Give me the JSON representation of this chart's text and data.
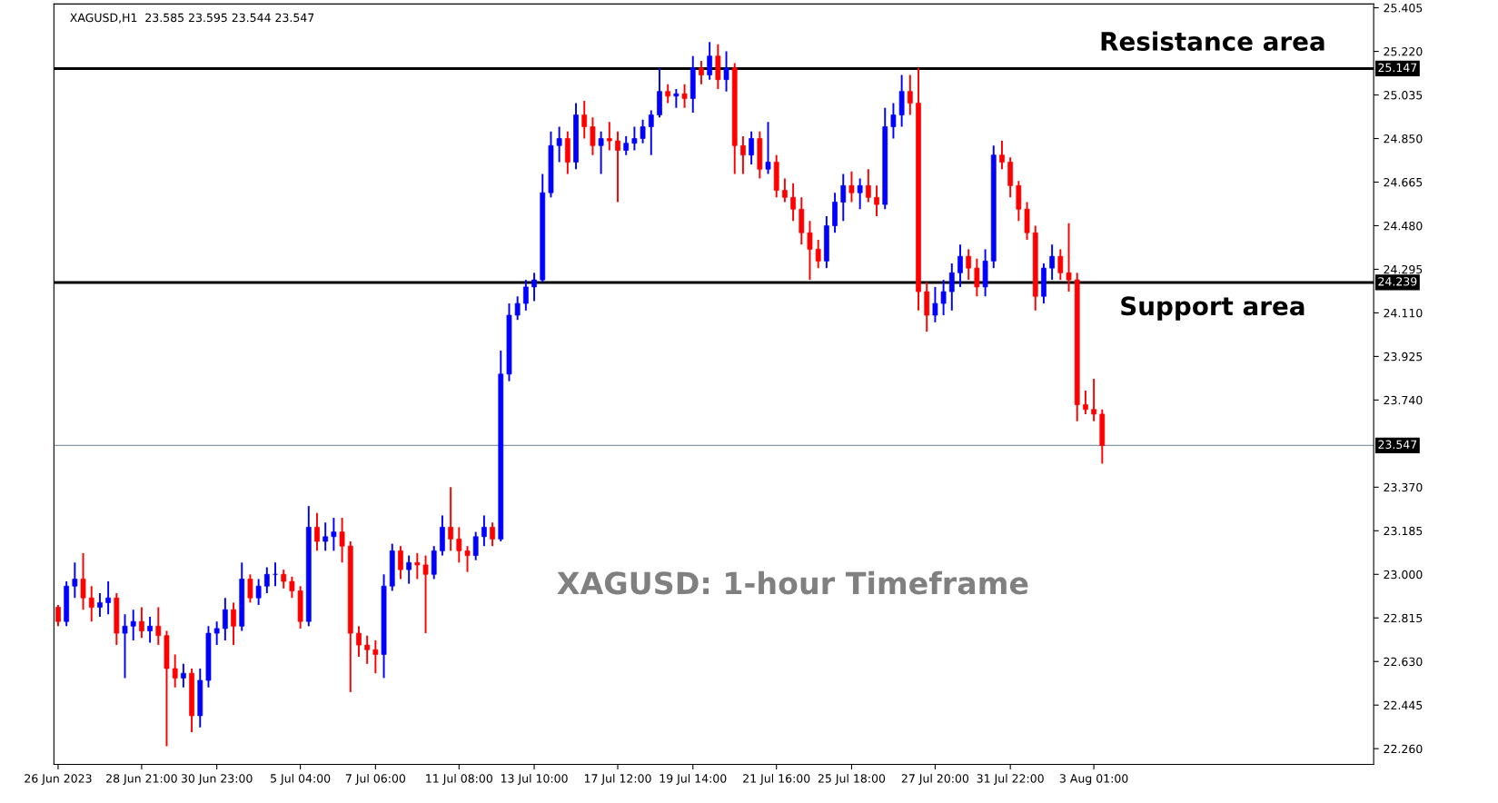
{
  "chart_data": {
    "type": "candlestick",
    "categories": [
      "26 Jun 2023",
      null,
      null,
      null,
      null,
      null,
      null,
      null,
      null,
      null,
      "28 Jun 21:00",
      null,
      null,
      null,
      null,
      null,
      null,
      null,
      null,
      "30 Jun 23:00",
      null,
      null,
      null,
      null,
      null,
      null,
      null,
      null,
      null,
      "5 Jul 04:00",
      null,
      null,
      null,
      null,
      null,
      null,
      null,
      null,
      "7 Jul 06:00",
      null,
      null,
      null,
      null,
      null,
      null,
      null,
      null,
      null,
      "11 Jul 08:00",
      null,
      null,
      null,
      null,
      null,
      null,
      null,
      null,
      "13 Jul 10:00",
      null,
      null,
      null,
      null,
      null,
      null,
      null,
      null,
      null,
      "17 Jul 12:00",
      null,
      null,
      null,
      null,
      null,
      null,
      null,
      null,
      "19 Jul 14:00",
      null,
      null,
      null,
      null,
      null,
      null,
      null,
      null,
      null,
      "21 Jul 16:00",
      null,
      null,
      null,
      null,
      null,
      null,
      null,
      null,
      "25 Jul 18:00",
      null,
      null,
      null,
      null,
      null,
      null,
      null,
      null,
      null,
      "27 Jul 20:00",
      null,
      null,
      null,
      null,
      null,
      null,
      null,
      null,
      "31 Jul 22:00",
      null,
      null,
      null,
      null,
      null,
      null,
      null,
      null,
      null,
      "3 Aug 01:00",
      null,
      null,
      null,
      null,
      null,
      null,
      null,
      null,
      null,
      null,
      null,
      null,
      null,
      null,
      null,
      null,
      null,
      null,
      null,
      null,
      null,
      null,
      null,
      null,
      null,
      null,
      null,
      null,
      null,
      null,
      null,
      null,
      null
    ],
    "ohlc": [
      [
        22.86,
        22.87,
        22.78,
        22.8
      ],
      [
        22.8,
        22.97,
        22.78,
        22.95
      ],
      [
        22.95,
        23.05,
        22.9,
        22.98
      ],
      [
        22.98,
        23.09,
        22.85,
        22.9
      ],
      [
        22.9,
        22.95,
        22.8,
        22.86
      ],
      [
        22.86,
        22.92,
        22.82,
        22.88
      ],
      [
        22.88,
        22.97,
        22.83,
        22.9
      ],
      [
        22.9,
        22.92,
        22.7,
        22.75
      ],
      [
        22.75,
        22.83,
        22.56,
        22.78
      ],
      [
        22.78,
        22.85,
        22.72,
        22.8
      ],
      [
        22.8,
        22.86,
        22.73,
        22.76
      ],
      [
        22.76,
        22.82,
        22.71,
        22.78
      ],
      [
        22.78,
        22.86,
        22.7,
        22.74
      ],
      [
        22.74,
        22.76,
        22.27,
        22.6
      ],
      [
        22.6,
        22.66,
        22.52,
        22.56
      ],
      [
        22.56,
        22.62,
        22.52,
        22.58
      ],
      [
        22.58,
        22.6,
        22.33,
        22.4
      ],
      [
        22.4,
        22.6,
        22.35,
        22.55
      ],
      [
        22.55,
        22.78,
        22.52,
        22.75
      ],
      [
        22.75,
        22.8,
        22.7,
        22.77
      ],
      [
        22.77,
        22.9,
        22.72,
        22.85
      ],
      [
        22.85,
        22.88,
        22.7,
        22.78
      ],
      [
        22.78,
        23.05,
        22.76,
        22.98
      ],
      [
        22.98,
        23.0,
        22.88,
        22.9
      ],
      [
        22.9,
        22.98,
        22.87,
        22.95
      ],
      [
        22.95,
        23.03,
        22.92,
        23.0
      ],
      [
        23.0,
        23.05,
        22.95,
        23.0
      ],
      [
        23.0,
        23.02,
        22.94,
        22.97
      ],
      [
        22.97,
        22.99,
        22.9,
        22.93
      ],
      [
        22.93,
        22.95,
        22.77,
        22.8
      ],
      [
        22.8,
        23.29,
        22.78,
        23.2
      ],
      [
        23.2,
        23.26,
        23.1,
        23.14
      ],
      [
        23.14,
        23.22,
        23.1,
        23.16
      ],
      [
        23.16,
        23.24,
        23.1,
        23.18
      ],
      [
        23.18,
        23.24,
        23.05,
        23.12
      ],
      [
        23.12,
        23.14,
        22.5,
        22.75
      ],
      [
        22.75,
        22.78,
        22.65,
        22.7
      ],
      [
        22.7,
        22.74,
        22.62,
        22.68
      ],
      [
        22.68,
        22.72,
        22.58,
        22.66
      ],
      [
        22.66,
        23.0,
        22.56,
        22.95
      ],
      [
        22.95,
        23.13,
        22.93,
        23.1
      ],
      [
        23.1,
        23.12,
        22.98,
        23.02
      ],
      [
        23.02,
        23.08,
        22.96,
        23.05
      ],
      [
        23.05,
        23.09,
        22.98,
        23.04
      ],
      [
        23.04,
        23.08,
        22.75,
        23.0
      ],
      [
        23.0,
        23.12,
        22.98,
        23.1
      ],
      [
        23.1,
        23.25,
        23.08,
        23.2
      ],
      [
        23.2,
        23.37,
        23.1,
        23.15
      ],
      [
        23.15,
        23.2,
        23.05,
        23.1
      ],
      [
        23.1,
        23.12,
        23.01,
        23.08
      ],
      [
        23.08,
        23.18,
        23.06,
        23.16
      ],
      [
        23.16,
        23.25,
        23.12,
        23.2
      ],
      [
        23.2,
        23.22,
        23.12,
        23.15
      ],
      [
        23.15,
        23.95,
        23.14,
        23.85
      ],
      [
        23.85,
        24.15,
        23.82,
        24.1
      ],
      [
        24.1,
        24.18,
        24.08,
        24.15
      ],
      [
        24.15,
        24.25,
        24.12,
        24.22
      ],
      [
        24.22,
        24.28,
        24.16,
        24.25
      ],
      [
        24.25,
        24.7,
        24.24,
        24.62
      ],
      [
        24.62,
        24.88,
        24.6,
        24.82
      ],
      [
        24.82,
        24.9,
        24.75,
        24.85
      ],
      [
        24.85,
        24.88,
        24.7,
        24.75
      ],
      [
        24.75,
        25.0,
        24.72,
        24.95
      ],
      [
        24.95,
        25.01,
        24.85,
        24.9
      ],
      [
        24.9,
        24.94,
        24.78,
        24.82
      ],
      [
        24.82,
        24.88,
        24.7,
        24.85
      ],
      [
        24.85,
        24.92,
        24.8,
        24.84
      ],
      [
        24.84,
        24.88,
        24.58,
        24.8
      ],
      [
        24.8,
        24.86,
        24.78,
        24.83
      ],
      [
        24.83,
        24.9,
        24.8,
        24.85
      ],
      [
        24.85,
        24.93,
        24.83,
        24.9
      ],
      [
        24.9,
        24.97,
        24.78,
        24.95
      ],
      [
        24.95,
        25.15,
        24.94,
        25.05
      ],
      [
        25.05,
        25.08,
        25.0,
        25.03
      ],
      [
        25.03,
        25.06,
        24.98,
        25.04
      ],
      [
        25.04,
        25.08,
        24.98,
        25.02
      ],
      [
        25.02,
        25.2,
        24.96,
        25.15
      ],
      [
        25.15,
        25.18,
        25.08,
        25.12
      ],
      [
        25.12,
        25.26,
        25.1,
        25.2
      ],
      [
        25.2,
        25.25,
        25.06,
        25.1
      ],
      [
        25.1,
        25.22,
        25.05,
        25.15
      ],
      [
        25.15,
        25.17,
        24.7,
        24.82
      ],
      [
        24.82,
        24.86,
        24.7,
        24.78
      ],
      [
        24.78,
        24.88,
        24.74,
        24.85
      ],
      [
        24.85,
        24.88,
        24.68,
        24.72
      ],
      [
        24.72,
        24.92,
        24.7,
        24.75
      ],
      [
        24.75,
        24.78,
        24.6,
        24.63
      ],
      [
        24.63,
        24.68,
        24.58,
        24.6
      ],
      [
        24.6,
        24.66,
        24.5,
        24.55
      ],
      [
        24.55,
        24.6,
        24.4,
        24.45
      ],
      [
        24.45,
        24.5,
        24.25,
        24.38
      ],
      [
        24.38,
        24.42,
        24.3,
        24.33
      ],
      [
        24.33,
        24.52,
        24.3,
        24.48
      ],
      [
        24.48,
        24.62,
        24.45,
        24.58
      ],
      [
        24.58,
        24.7,
        24.5,
        24.65
      ],
      [
        24.65,
        24.71,
        24.58,
        24.62
      ],
      [
        24.62,
        24.68,
        24.55,
        24.65
      ],
      [
        24.65,
        24.72,
        24.58,
        24.6
      ],
      [
        24.6,
        24.65,
        24.52,
        24.57
      ],
      [
        24.57,
        24.98,
        24.55,
        24.9
      ],
      [
        24.9,
        25.0,
        24.85,
        24.95
      ],
      [
        24.95,
        25.12,
        24.9,
        25.05
      ],
      [
        25.05,
        25.12,
        24.95,
        25.0
      ],
      [
        25.0,
        25.15,
        24.12,
        24.2
      ],
      [
        24.2,
        24.24,
        24.03,
        24.1
      ],
      [
        24.1,
        24.22,
        24.07,
        24.15
      ],
      [
        24.15,
        24.25,
        24.1,
        24.2
      ],
      [
        24.2,
        24.32,
        24.12,
        24.28
      ],
      [
        24.28,
        24.4,
        24.22,
        24.35
      ],
      [
        24.35,
        24.38,
        24.25,
        24.3
      ],
      [
        24.3,
        24.34,
        24.18,
        24.22
      ],
      [
        24.22,
        24.38,
        24.18,
        24.33
      ],
      [
        24.33,
        24.82,
        24.3,
        24.78
      ],
      [
        24.78,
        24.84,
        24.72,
        24.75
      ],
      [
        24.75,
        24.77,
        24.6,
        24.65
      ],
      [
        24.65,
        24.67,
        24.5,
        24.55
      ],
      [
        24.55,
        24.58,
        24.42,
        24.45
      ],
      [
        24.45,
        24.48,
        24.12,
        24.18
      ],
      [
        24.18,
        24.32,
        24.15,
        24.3
      ],
      [
        24.3,
        24.4,
        24.25,
        24.35
      ],
      [
        24.35,
        24.38,
        24.25,
        24.28
      ],
      [
        24.28,
        24.49,
        24.2,
        24.25
      ],
      [
        24.25,
        24.28,
        23.65,
        23.72
      ],
      [
        23.72,
        23.78,
        23.68,
        23.7
      ],
      [
        23.7,
        23.83,
        23.65,
        23.68
      ],
      [
        23.68,
        23.7,
        23.47,
        23.547
      ],
      null,
      null,
      null,
      null,
      null,
      null,
      null,
      null,
      null,
      null,
      null,
      null,
      null,
      null,
      null,
      null,
      null,
      null,
      null,
      null,
      null,
      null,
      null,
      null,
      null,
      null,
      null,
      null,
      null,
      null,
      null,
      null
    ],
    "colors": [
      "#ff0000",
      "#0000ff",
      "#0000ff",
      "#ff0000",
      "#ff0000",
      "#0000ff",
      "#0000ff",
      "#ff0000",
      "#0000ff",
      "#0000ff",
      "#ff0000",
      "#0000ff",
      "#ff0000",
      "#ff0000",
      "#ff0000",
      "#0000ff",
      "#ff0000",
      "#0000ff",
      "#0000ff",
      "#0000ff",
      "#0000ff",
      "#ff0000",
      "#0000ff",
      "#ff0000",
      "#0000ff",
      "#0000ff",
      "#0000ff",
      "#ff0000",
      "#ff0000",
      "#ff0000",
      "#0000ff",
      "#ff0000",
      "#0000ff",
      "#0000ff",
      "#ff0000",
      "#ff0000",
      "#ff0000",
      "#ff0000",
      "#ff0000",
      "#0000ff",
      "#0000ff",
      "#ff0000",
      "#0000ff",
      "#ff0000",
      "#ff0000",
      "#0000ff",
      "#0000ff",
      "#ff0000",
      "#ff0000",
      "#ff0000",
      "#0000ff",
      "#0000ff",
      "#ff0000",
      "#0000ff",
      "#0000ff",
      "#0000ff",
      "#0000ff",
      "#0000ff",
      "#0000ff",
      "#0000ff",
      "#0000ff",
      "#ff0000",
      "#0000ff",
      "#ff0000",
      "#ff0000",
      "#0000ff",
      "#ff0000",
      "#ff0000",
      "#0000ff",
      "#0000ff",
      "#0000ff",
      "#0000ff",
      "#0000ff",
      "#ff0000",
      "#0000ff",
      "#ff0000",
      "#0000ff",
      "#ff0000",
      "#0000ff",
      "#ff0000",
      "#0000ff",
      "#ff0000",
      "#ff0000",
      "#0000ff",
      "#ff0000",
      "#0000ff",
      "#ff0000",
      "#ff0000",
      "#ff0000",
      "#ff0000",
      "#ff0000",
      "#ff0000",
      "#0000ff",
      "#0000ff",
      "#0000ff",
      "#ff0000",
      "#0000ff",
      "#ff0000",
      "#ff0000",
      "#0000ff",
      "#0000ff",
      "#0000ff",
      "#ff0000",
      "#ff0000",
      "#ff0000",
      "#0000ff",
      "#0000ff",
      "#0000ff",
      "#0000ff",
      "#ff0000",
      "#ff0000",
      "#0000ff",
      "#0000ff",
      "#ff0000",
      "#ff0000",
      "#ff0000",
      "#ff0000",
      "#ff0000",
      "#0000ff",
      "#0000ff",
      "#ff0000",
      "#ff0000",
      "#ff0000",
      "#ff0000",
      "#ff0000",
      "#ff0000",
      null,
      null,
      null,
      null,
      null,
      null,
      null,
      null,
      null,
      null,
      null,
      null,
      null,
      null,
      null,
      null,
      null,
      null,
      null,
      null,
      null,
      null,
      null,
      null,
      null,
      null,
      null,
      null,
      null,
      null,
      null,
      null
    ],
    "ylim": [
      22.193,
      25.421
    ],
    "yticks": [
      {
        "value": 22.26,
        "label": "22.260"
      },
      22.445,
      {
        "value": 22.63,
        "label": "22.630"
      },
      22.815,
      {
        "value": 23.0,
        "label": "23.000"
      },
      23.185,
      {
        "value": 23.37,
        "label": "23.370"
      },
      {
        "value": 23.74,
        "label": "23.740"
      },
      23.925,
      {
        "value": 24.11,
        "label": "24.110"
      },
      24.295,
      {
        "value": 24.48,
        "label": "24.480"
      },
      24.665,
      {
        "value": 24.85,
        "label": "24.850"
      },
      25.035,
      {
        "value": 25.22,
        "label": "25.220"
      },
      25.405
    ],
    "ref_lines": [
      {
        "axis": "y",
        "value": 25.147,
        "label": "25.147",
        "color": "#000000"
      },
      {
        "axis": "y",
        "value": 24.239,
        "label": "24.239",
        "color": "#000000"
      },
      {
        "axis": "y",
        "value": 23.547,
        "label": "23.547",
        "color": "#8597aa"
      }
    ],
    "annotations": [
      "XAGUSD,H1  23.585 23.595 23.544 23.547",
      "Resistance area",
      "Support area",
      "XAGUSD: 1-hour Timeframe"
    ],
    "grid": false
  }
}
